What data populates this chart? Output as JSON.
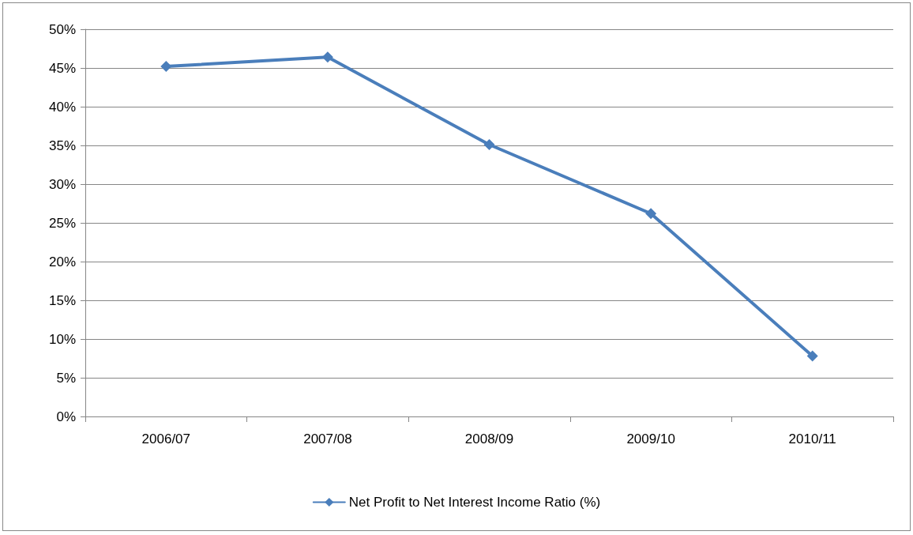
{
  "chart_data": {
    "type": "line",
    "categories": [
      "2006/07",
      "2007/08",
      "2008/09",
      "2009/10",
      "2010/11"
    ],
    "series": [
      {
        "name": "Net Profit to Net Interest Income Ratio (%)",
        "color": "#4a7ebb",
        "values": [
          45.2,
          46.4,
          35.1,
          26.2,
          7.8
        ]
      }
    ],
    "ylim": [
      0,
      50
    ],
    "yticks": [
      {
        "value": 0,
        "label": "0%"
      },
      {
        "value": 5,
        "label": "5%"
      },
      {
        "value": 10,
        "label": "10%"
      },
      {
        "value": 15,
        "label": "15%"
      },
      {
        "value": 20,
        "label": "20%"
      },
      {
        "value": 25,
        "label": "25%"
      },
      {
        "value": 30,
        "label": "30%"
      },
      {
        "value": 35,
        "label": "35%"
      },
      {
        "value": 40,
        "label": "40%"
      },
      {
        "value": 45,
        "label": "45%"
      },
      {
        "value": 50,
        "label": "50%"
      }
    ],
    "grid": "y",
    "legend": "bottom",
    "marker": "diamond",
    "line_style": "solid"
  }
}
